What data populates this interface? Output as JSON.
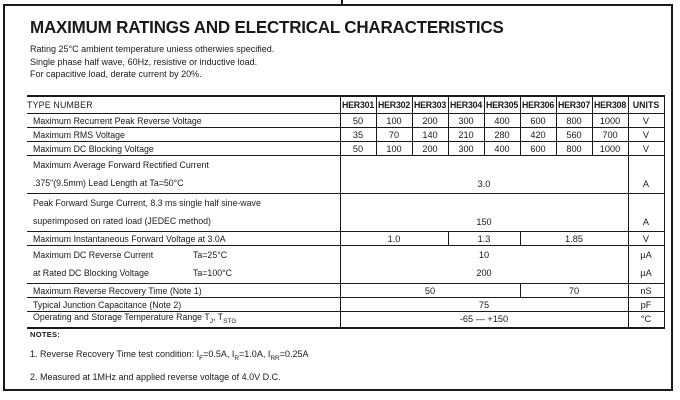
{
  "page": {
    "title": "MAXIMUM RATINGS AND ELECTRICAL CHARACTERISTICS",
    "subtitle_lines": [
      "Rating 25°C ambient temperature uniess otherwies specified.",
      "Single phase half wave, 60Hz, resistive or inductive load.",
      "For capacitive load, derate current by 20%."
    ]
  },
  "table": {
    "header": {
      "type_number": "TYPE NUMBER",
      "models": [
        "HER301",
        "HER302",
        "HER303",
        "HER304",
        "HER305",
        "HER306",
        "HER307",
        "HER308"
      ],
      "units": "UNITS"
    },
    "rows": [
      {
        "label": "Maximum Recurrent Peak Reverse Voltage",
        "values": [
          {
            "t": "50"
          },
          {
            "t": "100"
          },
          {
            "t": "200"
          },
          {
            "t": "300"
          },
          {
            "t": "400"
          },
          {
            "t": "600"
          },
          {
            "t": "800"
          },
          {
            "t": "1000"
          }
        ],
        "unit": "V"
      },
      {
        "label": "Maximum RMS Voltage",
        "values": [
          {
            "t": "35"
          },
          {
            "t": "70"
          },
          {
            "t": "140"
          },
          {
            "t": "210"
          },
          {
            "t": "280"
          },
          {
            "t": "420"
          },
          {
            "t": "560"
          },
          {
            "t": "700"
          }
        ],
        "unit": "V"
      },
      {
        "label": "Maximum DC Blocking Voltage",
        "values": [
          {
            "t": "50"
          },
          {
            "t": "100"
          },
          {
            "t": "200"
          },
          {
            "t": "300"
          },
          {
            "t": "400"
          },
          {
            "t": "600"
          },
          {
            "t": "800"
          },
          {
            "t": "1000"
          }
        ],
        "unit": "V"
      },
      {
        "tall": true,
        "value_align": "bottom",
        "label_lines": [
          "Maximum Average Forward Rectified Current",
          ".375\"(9.5mm) Lead Length at Ta=50°C"
        ],
        "values": [
          {
            "t": "3.0",
            "span": 8
          }
        ],
        "unit": "A"
      },
      {
        "tall": true,
        "value_align": "bottom",
        "label_lines": [
          "Peak Forward Surge Current, 8.3 ms single half sine-wave",
          "superimposed on rated load (JEDEC method)"
        ],
        "values": [
          {
            "t": "150",
            "span": 8
          }
        ],
        "unit": "A"
      },
      {
        "label": "Maximum Instantaneous Forward Voltage at 3.0A",
        "values": [
          {
            "t": "1.0",
            "span": 3
          },
          {
            "t": "1.3",
            "span": 2
          },
          {
            "t": "1.85",
            "span": 3
          }
        ],
        "unit": "V"
      },
      {
        "tall": true,
        "label_lines": [
          {
            "text": "Maximum DC Reverse Current",
            "tab": "Ta=25°C"
          },
          {
            "text": "at Rated DC Blocking Voltage",
            "tab": "Ta=100°C"
          }
        ],
        "value_lines": [
          "10",
          "200"
        ],
        "unit_lines": [
          "µA",
          "µA"
        ]
      },
      {
        "label": "Maximum Reverse Recovery Time (Note 1)",
        "values": [
          {
            "t": "50",
            "span": 5
          },
          {
            "t": "70",
            "span": 3
          }
        ],
        "unit": "nS"
      },
      {
        "label": "Typical Junction Capacitance (Note 2)",
        "values": [
          {
            "t": "75",
            "span": 8
          }
        ],
        "unit": "pF"
      },
      {
        "label_html": "Operating and Storage Temperature Range T<sub>J</sub>, T<sub>STG</sub>",
        "values": [
          {
            "t": "-65 — +150",
            "span": 8
          }
        ],
        "unit": "°C"
      }
    ]
  },
  "notes": {
    "heading": "NOTES:",
    "items": [
      {
        "html": "1. Reverse Recovery Time test condition: I<sub>F</sub>=0.5A, I<sub>R</sub>=1.0A, I<sub>RR</sub>=0.25A"
      },
      {
        "text": "2. Measured at 1MHz and applied reverse voltage of 4.0V D.C."
      }
    ]
  }
}
